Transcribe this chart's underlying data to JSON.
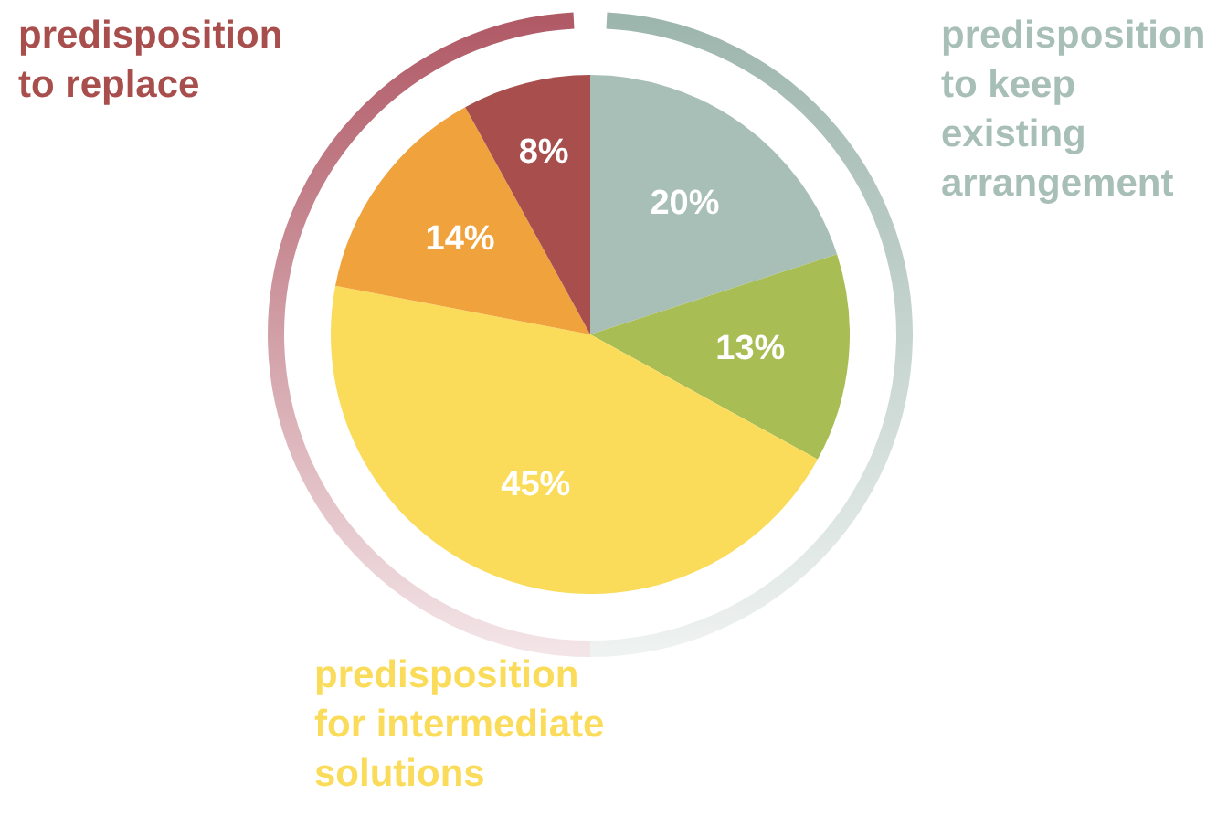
{
  "chart_data": {
    "type": "pie",
    "categories": [
      null,
      null,
      null,
      null,
      null
    ],
    "values": [
      20,
      13,
      45,
      14,
      8
    ],
    "colors": [
      "#a8bfb7",
      "#a9bd55",
      "#fadc5a",
      "#f0a23c",
      "#a84f4d"
    ],
    "value_labels": [
      "20%",
      "13%",
      "45%",
      "14%",
      "8%"
    ],
    "annotations": [
      "predisposition\nto keep existing\narrangement",
      "predisposition\nto replace",
      "predisposition\nfor intermediate\nsolutions"
    ],
    "legend": false
  }
}
